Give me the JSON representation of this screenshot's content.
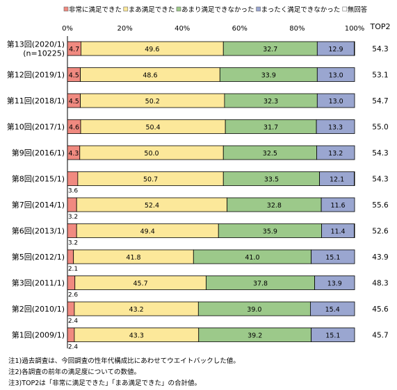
{
  "chart_data": {
    "type": "bar",
    "orientation": "horizontal",
    "stacked": true,
    "percent": true,
    "categories": [
      "第13回(2020/1)\n(n=10225)",
      "第12回(2019/1)",
      "第11回(2018/1)",
      "第10回(2017/1)",
      "第9回(2016/1)",
      "第8回(2015/1)",
      "第7回(2014/1)",
      "第6回(2013/1)",
      "第5回(2012/1)",
      "第3回(2011/1)",
      "第2回(2010/1)",
      "第1回(2009/1)"
    ],
    "series": [
      {
        "name": "非常に満足できた",
        "color": "#f08a80",
        "values": [
          4.7,
          4.5,
          4.5,
          4.6,
          4.3,
          3.6,
          3.2,
          3.2,
          2.1,
          2.6,
          2.4,
          2.4
        ]
      },
      {
        "name": "まあ満足できた",
        "color": "#fce89a",
        "values": [
          49.6,
          48.6,
          50.2,
          50.4,
          50.0,
          50.7,
          52.4,
          49.4,
          41.8,
          45.7,
          43.2,
          43.3
        ]
      },
      {
        "name": "あまり満足できなかった",
        "color": "#9cc98a",
        "values": [
          32.7,
          33.9,
          32.3,
          31.7,
          32.5,
          33.5,
          32.8,
          35.9,
          41.0,
          37.8,
          39.0,
          39.2
        ]
      },
      {
        "name": "まったく満足できなかった",
        "color": "#9aa6d0",
        "values": [
          12.9,
          13.0,
          13.0,
          13.3,
          13.2,
          12.1,
          11.6,
          11.4,
          15.1,
          13.9,
          15.4,
          15.1
        ]
      },
      {
        "name": "無回答",
        "color": "#ffffff",
        "values": [
          0.1,
          0.0,
          0.0,
          0.0,
          0.0,
          0.1,
          0.0,
          0.1,
          0.0,
          0.0,
          0.0,
          0.0
        ]
      }
    ],
    "labels": {
      "非常に満足できた": [
        "4.7",
        "4.5",
        "4.5",
        "4.6",
        "4.3",
        "3.6",
        "3.2",
        "3.2",
        "2.1",
        "2.6",
        "2.4",
        "2.4"
      ],
      "まあ満足できた": [
        "49.6",
        "48.6",
        "50.2",
        "50.4",
        "50.0",
        "50.7",
        "52.4",
        "49.4",
        "41.8",
        "45.7",
        "43.2",
        "43.3"
      ],
      "あまり満足できなかった": [
        "32.7",
        "33.9",
        "32.3",
        "31.7",
        "32.5",
        "33.5",
        "32.8",
        "35.9",
        "41.0",
        "37.8",
        "39.0",
        "39.2"
      ],
      "まったく満足できなかった": [
        "12.9",
        "13.0",
        "13.0",
        "13.3",
        "13.2",
        "12.1",
        "11.6",
        "11.4",
        "15.1",
        "13.9",
        "15.4",
        "15.1"
      ]
    },
    "top2_header": "TOP2",
    "top2": [
      "54.3",
      "53.1",
      "54.7",
      "55.0",
      "54.3",
      "54.3",
      "55.6",
      "52.6",
      "43.9",
      "48.3",
      "45.6",
      "45.7"
    ],
    "xticks": [
      "0%",
      "20%",
      "40%",
      "60%",
      "80%",
      "100%"
    ],
    "xlim": [
      0,
      100
    ],
    "legend_position": "top"
  },
  "notes": [
    "注1)過去調査は、今回調査の性年代構成比にあわせてウエイトバックした値。",
    "注2)各調査の前年の満足度についての数値。",
    "注3)TOP2は「非常に満足できた」「まあ満足できた」の合計値。"
  ]
}
